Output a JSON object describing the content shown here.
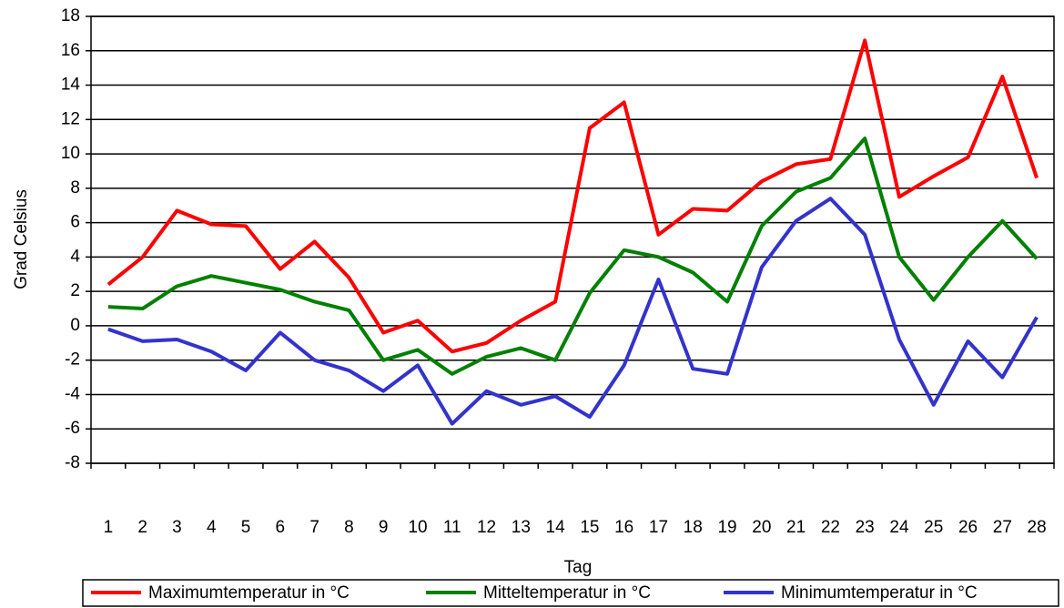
{
  "chart_data": {
    "type": "line",
    "x_label": "Tag",
    "y_label": "Grad Celsius",
    "categories": [
      "1",
      "2",
      "3",
      "4",
      "5",
      "6",
      "7",
      "8",
      "9",
      "10",
      "11",
      "12",
      "13",
      "14",
      "15",
      "16",
      "17",
      "18",
      "19",
      "20",
      "21",
      "22",
      "23",
      "24",
      "25",
      "26",
      "27",
      "28"
    ],
    "series": [
      {
        "name": "Maximumtemperatur in °C",
        "color": "#ff0000",
        "values": [
          2.4,
          4.0,
          6.7,
          5.9,
          5.8,
          3.3,
          4.9,
          2.8,
          -0.4,
          0.3,
          -1.5,
          -1.0,
          0.3,
          1.4,
          11.5,
          13.0,
          5.3,
          6.8,
          6.7,
          8.4,
          9.4,
          9.7,
          16.6,
          7.5,
          8.7,
          9.8,
          14.5,
          8.6
        ]
      },
      {
        "name": "Mitteltemperatur in °C",
        "color": "#008000",
        "values": [
          1.1,
          1.0,
          2.3,
          2.9,
          2.5,
          2.1,
          1.4,
          0.9,
          -2.0,
          -1.4,
          -2.8,
          -1.8,
          -1.3,
          -2.0,
          1.9,
          4.4,
          4.0,
          3.1,
          1.4,
          5.8,
          7.8,
          8.6,
          10.9,
          4.0,
          1.5,
          4.0,
          6.1,
          3.9
        ]
      },
      {
        "name": "Minimumtemperatur in °C",
        "color": "#3333cc",
        "values": [
          -0.2,
          -0.9,
          -0.8,
          -1.5,
          -2.6,
          -0.4,
          -2.0,
          -2.6,
          -3.8,
          -2.3,
          -5.7,
          -3.8,
          -4.6,
          -4.1,
          -5.3,
          -2.3,
          2.7,
          -2.5,
          -2.8,
          3.4,
          6.1,
          7.4,
          5.3,
          -0.8,
          -4.6,
          -0.9,
          -3.0,
          0.5
        ]
      }
    ],
    "ylim": [
      -8,
      18
    ],
    "yticks": [
      -8,
      -6,
      -4,
      -2,
      0,
      2,
      4,
      6,
      8,
      10,
      12,
      14,
      16,
      18
    ],
    "grid": true,
    "legend": "bottom"
  }
}
